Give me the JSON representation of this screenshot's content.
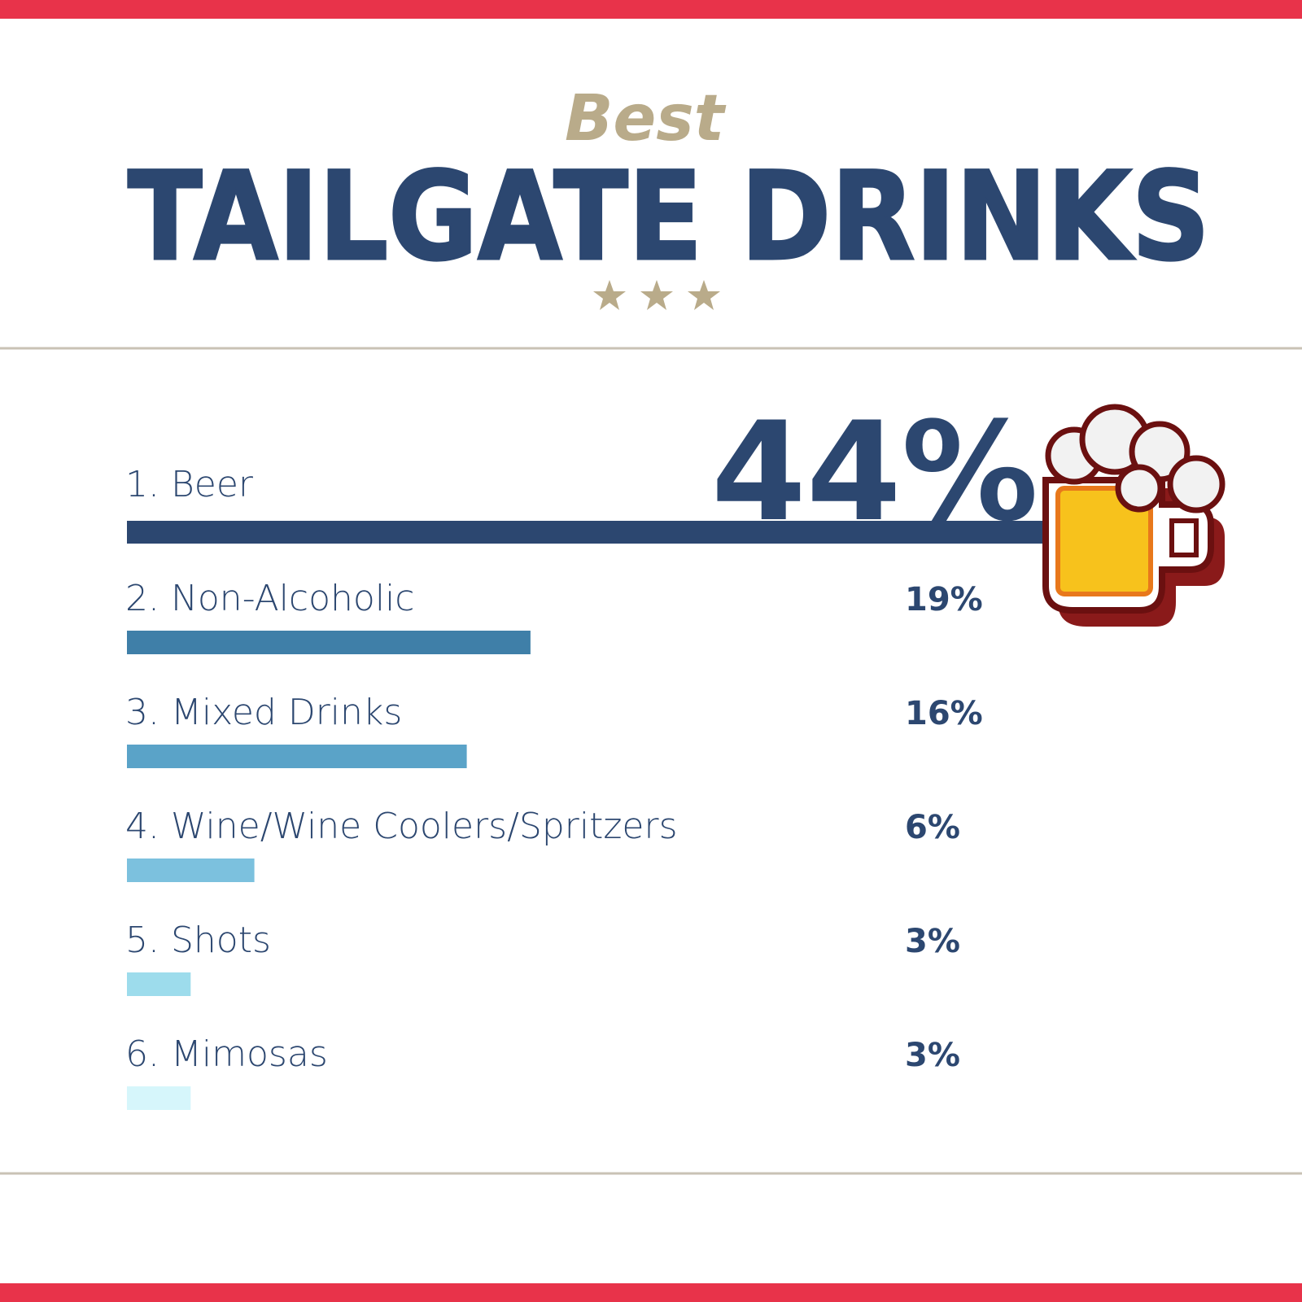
{
  "chart_data": {
    "type": "bar",
    "orientation": "horizontal",
    "kicker": "Best",
    "title": "TAILGATE DRINKS",
    "categories": [
      "1. Beer",
      "2. Non-Alcoholic",
      "3. Mixed Drinks",
      "4. Wine/Wine Coolers/Spritzers",
      "5. Shots",
      "6. Mimosas"
    ],
    "values": [
      44,
      19,
      16,
      6,
      3,
      3
    ],
    "value_labels": [
      "44%",
      "19%",
      "16%",
      "6%",
      "3%",
      "3%"
    ],
    "colors": [
      "#2c4770",
      "#3f7fa8",
      "#5aa3c8",
      "#7cc1de",
      "#9ddcec",
      "#d6f6fb"
    ]
  }
}
